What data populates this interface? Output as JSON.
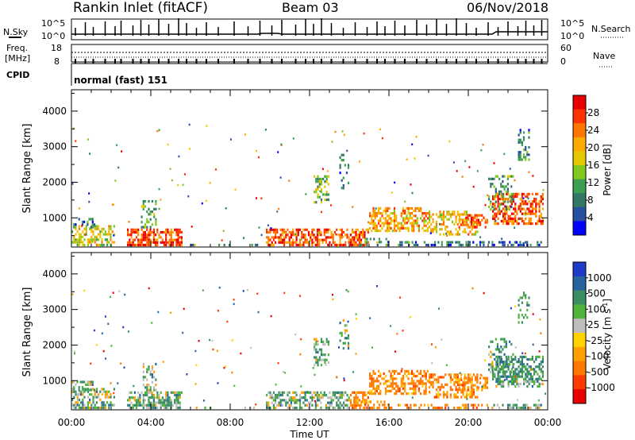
{
  "header": {
    "station": "Rankin Inlet (fitACF)",
    "beam": "Beam 03",
    "date": "06/Nov/2018"
  },
  "summary": {
    "nsky_label": "N.Sky",
    "nsearch_label": "N.Search",
    "freq_label": "Freq.",
    "freq_unit": "[MHz]",
    "nave_label": "Nave",
    "cpid_label": "CPID",
    "cpid_value": "normal (fast) 151",
    "nsky_ticks": [
      "10^5",
      "10^0"
    ],
    "nsearch_ticks": [
      "10^5",
      "10^0"
    ],
    "freq_ticks": [
      "18",
      "8"
    ],
    "nave_ticks": [
      "60",
      "0"
    ]
  },
  "chart_data": [
    {
      "type": "heatmap",
      "name": "power",
      "ylabel": "Slant Range [km]",
      "yticks": [
        1000,
        2000,
        3000,
        4000
      ],
      "ylim": [
        180,
        4600
      ],
      "xticks": [
        "00:00",
        "04:00",
        "08:00",
        "12:00",
        "16:00",
        "20:00",
        "00:00"
      ],
      "xlim": [
        0,
        24
      ],
      "colorbar": {
        "label": "Power [dB]",
        "ticks": [
          "28",
          "24",
          "20",
          "16",
          "12",
          "8",
          "4"
        ],
        "colors": [
          "#e60000",
          "#ff3300",
          "#ff7700",
          "#ffaa00",
          "#e6c800",
          "#7fc81e",
          "#3ca050",
          "#327864",
          "#2850a0",
          "#0000ff"
        ]
      }
    },
    {
      "type": "heatmap",
      "name": "velocity",
      "ylabel": "Slant Range [km]",
      "yticks": [
        1000,
        2000,
        3000,
        4000
      ],
      "ylim": [
        180,
        4600
      ],
      "xticks": [
        "00:00",
        "04:00",
        "08:00",
        "12:00",
        "16:00",
        "20:00",
        "00:00"
      ],
      "xlim": [
        0,
        24
      ],
      "xlabel": "Time UT",
      "colorbar": {
        "label": "Velocity [m s",
        "label_sup": "-1",
        "label_end": "]",
        "ticks": [
          "1000",
          "500",
          "100",
          "25",
          "-25",
          "-100",
          "-500",
          "-1000"
        ],
        "colors": [
          "#1e3cc8",
          "#2864a0",
          "#3c8c64",
          "#50b43c",
          "#bebebe",
          "#ffd200",
          "#ffa000",
          "#ff7800",
          "#ff3c00",
          "#e60000"
        ]
      }
    }
  ]
}
